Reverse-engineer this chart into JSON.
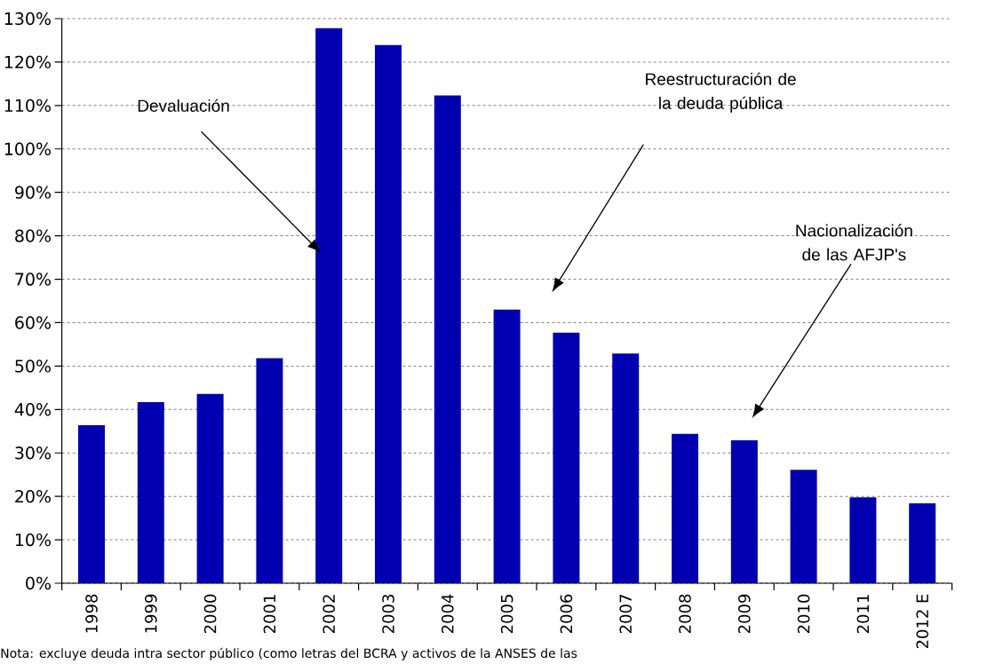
{
  "chart_data": {
    "type": "bar",
    "categories": [
      "1998",
      "1999",
      "2000",
      "2001",
      "2002",
      "2003",
      "2004",
      "2005",
      "2006",
      "2007",
      "2008",
      "2009",
      "2010",
      "2011",
      "2012 E"
    ],
    "values": [
      36.4,
      41.7,
      43.6,
      51.8,
      127.8,
      123.9,
      112.3,
      63.0,
      57.7,
      52.9,
      34.4,
      32.9,
      26.1,
      19.8,
      18.4
    ],
    "color": "#0000b0",
    "ylim": [
      0,
      130
    ],
    "yticks": [
      {
        "value": 0,
        "label": "0%"
      },
      {
        "value": 10,
        "label": "10%"
      },
      {
        "value": 20,
        "label": "20%"
      },
      {
        "value": 30,
        "label": "30%"
      },
      {
        "value": 40,
        "label": "40%"
      },
      {
        "value": 50,
        "label": "50%"
      },
      {
        "value": 60,
        "label": "60%"
      },
      {
        "value": 70,
        "label": "70%"
      },
      {
        "value": 80,
        "label": "80%"
      },
      {
        "value": 90,
        "label": "90%"
      },
      {
        "value": 100,
        "label": "100%"
      },
      {
        "value": 110,
        "label": "110%"
      },
      {
        "value": 120,
        "label": "120%"
      },
      {
        "value": 130,
        "label": "130%"
      }
    ],
    "grid": "y",
    "annotations": [
      "Devaluación",
      "Reestructuración de la deuda pública",
      "Nacionalización de las AFJP's",
      "Nota: excluye deuda intra sector público (como letras del BCRA y activos de la ANSES de las"
    ]
  }
}
